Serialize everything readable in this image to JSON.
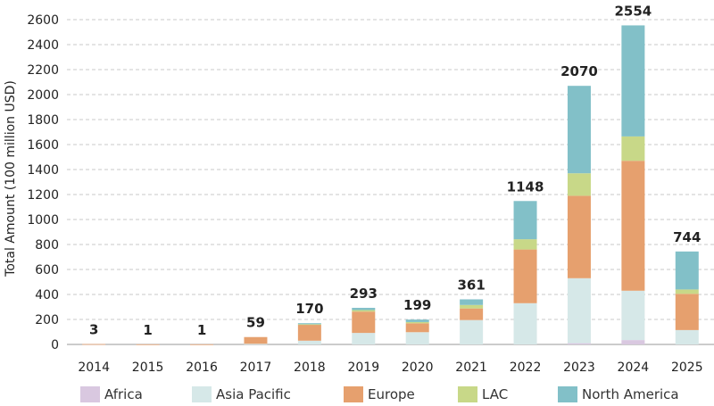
{
  "chart_data": {
    "type": "bar",
    "stacked": true,
    "title": "",
    "xlabel": "",
    "ylabel": "Total Amount (100 million USD)",
    "ylim": [
      0,
      2600
    ],
    "yticks": [
      0,
      200,
      400,
      600,
      800,
      1000,
      1200,
      1400,
      1600,
      1800,
      2000,
      2200,
      2400,
      2600
    ],
    "grid": "horizontal",
    "legend_position": "bottom",
    "categories": [
      "2014",
      "2015",
      "2016",
      "2017",
      "2018",
      "2019",
      "2020",
      "2021",
      "2022",
      "2023",
      "2024",
      "2025"
    ],
    "series": [
      {
        "name": "Africa",
        "color": "#d9c8e0",
        "values": [
          0,
          0,
          0,
          0,
          0,
          0,
          0,
          0,
          0,
          10,
          35,
          0
        ]
      },
      {
        "name": "Asia Pacific",
        "color": "#d6e8e8",
        "values": [
          0,
          0,
          0,
          5,
          30,
          92,
          98,
          195,
          330,
          520,
          395,
          115
        ]
      },
      {
        "name": "Europe",
        "color": "#e6a06e",
        "values": [
          3,
          1,
          1,
          54,
          127,
          171,
          71,
          93,
          430,
          660,
          1040,
          290
        ]
      },
      {
        "name": "LAC",
        "color": "#c8d888",
        "values": [
          0,
          0,
          0,
          0,
          5,
          12,
          10,
          28,
          82,
          180,
          195,
          35
        ]
      },
      {
        "name": "North America",
        "color": "#82c0c8",
        "values": [
          0,
          0,
          0,
          0,
          8,
          18,
          20,
          45,
          306,
          700,
          889,
          304
        ]
      }
    ],
    "totals": [
      "3",
      "1",
      "1",
      "59",
      "170",
      "293",
      "199",
      "361",
      "1148",
      "2070",
      "2554",
      "744"
    ]
  }
}
